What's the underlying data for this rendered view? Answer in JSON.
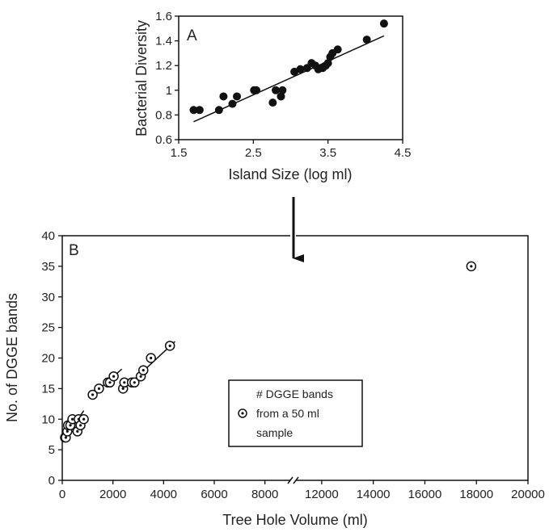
{
  "chart_data": [
    {
      "type": "scatter",
      "panel_label": "A",
      "xlabel": "Island Size (log ml)",
      "ylabel": "Bacterial Diversity",
      "xlim": [
        1.5,
        4.5
      ],
      "ylim": [
        0.6,
        1.6
      ],
      "xticks": [
        "1.5",
        "2.5",
        "3.5",
        "4.5"
      ],
      "yticks": [
        "0.6",
        "0.8",
        "1",
        "1.2",
        "1.4",
        "1.6"
      ],
      "grid": false,
      "series": [
        {
          "marker": "filled-circle",
          "points": [
            [
              1.7,
              0.84
            ],
            [
              1.78,
              0.84
            ],
            [
              2.04,
              0.84
            ],
            [
              2.1,
              0.95
            ],
            [
              2.22,
              0.89
            ],
            [
              2.28,
              0.95
            ],
            [
              2.51,
              1.0
            ],
            [
              2.54,
              1.0
            ],
            [
              2.76,
              0.9
            ],
            [
              2.8,
              1.0
            ],
            [
              2.87,
              0.95
            ],
            [
              2.89,
              1.0
            ],
            [
              3.05,
              1.15
            ],
            [
              3.13,
              1.17
            ],
            [
              3.22,
              1.18
            ],
            [
              3.28,
              1.22
            ],
            [
              3.33,
              1.2
            ],
            [
              3.37,
              1.17
            ],
            [
              3.43,
              1.18
            ],
            [
              3.47,
              1.2
            ],
            [
              3.5,
              1.22
            ],
            [
              3.53,
              1.27
            ],
            [
              3.56,
              1.3
            ],
            [
              3.63,
              1.33
            ],
            [
              4.02,
              1.41
            ],
            [
              4.25,
              1.54
            ]
          ]
        }
      ],
      "fit_line": [
        [
          1.7,
          0.745
        ],
        [
          4.25,
          1.44
        ]
      ]
    },
    {
      "type": "scatter",
      "panel_label": "B",
      "xlabel": "Tree Hole Volume (ml)",
      "ylabel": "No. of DGGE bands",
      "xlim": [
        0,
        20000
      ],
      "ylim": [
        0,
        40
      ],
      "x_axis_break": [
        9000,
        11000
      ],
      "xticks": [
        "0",
        "2000",
        "4000",
        "6000",
        "8000",
        "12000",
        "14000",
        "16000",
        "18000",
        "20000"
      ],
      "yticks": [
        "0",
        "5",
        "10",
        "15",
        "20",
        "25",
        "30",
        "35",
        "40"
      ],
      "grid": false,
      "series": [
        {
          "marker": "open-circle-dot",
          "points": [
            [
              110,
              7
            ],
            [
              140,
              7
            ],
            [
              200,
              8
            ],
            [
              230,
              9
            ],
            [
              320,
              9
            ],
            [
              400,
              10
            ],
            [
              600,
              8
            ],
            [
              650,
              10
            ],
            [
              720,
              9
            ],
            [
              850,
              10
            ],
            [
              1200,
              14
            ],
            [
              1450,
              15
            ],
            [
              1800,
              16
            ],
            [
              1880,
              16
            ],
            [
              2030,
              17
            ],
            [
              2400,
              15
            ],
            [
              2450,
              16
            ],
            [
              2750,
              16
            ],
            [
              2850,
              16
            ],
            [
              3100,
              17
            ],
            [
              3200,
              18
            ],
            [
              3500,
              20
            ],
            [
              4250,
              22
            ],
            [
              17800,
              35
            ]
          ]
        }
      ],
      "fit_lines": [
        [
          [
            60,
            6.7
          ],
          [
            850,
            11.4
          ]
        ],
        [
          [
            1150,
            13.8
          ],
          [
            2350,
            18.2
          ]
        ],
        [
          [
            2350,
            14.6
          ],
          [
            4450,
            22.7
          ]
        ]
      ],
      "legend": {
        "lines": [
          "# DGGE bands",
          "from a 50 ml",
          "sample"
        ]
      }
    }
  ]
}
